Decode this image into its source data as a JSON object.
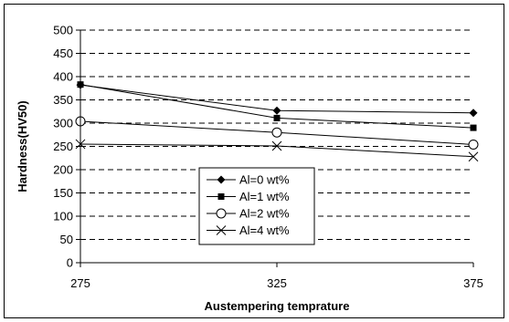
{
  "chart_data": {
    "type": "line",
    "title": "",
    "xlabel": "Austempering temprature",
    "ylabel": "Hardness(HV50)",
    "categories": [
      "275",
      "325",
      "375"
    ],
    "x": [
      275,
      325,
      375
    ],
    "ylim": [
      0,
      500
    ],
    "yticks": [
      0,
      50,
      100,
      150,
      200,
      250,
      300,
      350,
      400,
      450,
      500
    ],
    "grid": "horizontal dashed",
    "legend_position": "center-bottom",
    "series": [
      {
        "name": "Al=0 wt%",
        "marker": "diamond-filled",
        "values": [
          382,
          327,
          322
        ]
      },
      {
        "name": "Al=1 wt%",
        "marker": "square-filled",
        "values": [
          383,
          311,
          290
        ]
      },
      {
        "name": "Al=2 wt%",
        "marker": "circle-open",
        "values": [
          304,
          280,
          254
        ]
      },
      {
        "name": "Al=4 wt%",
        "marker": "x",
        "values": [
          255,
          251,
          228
        ]
      }
    ]
  }
}
